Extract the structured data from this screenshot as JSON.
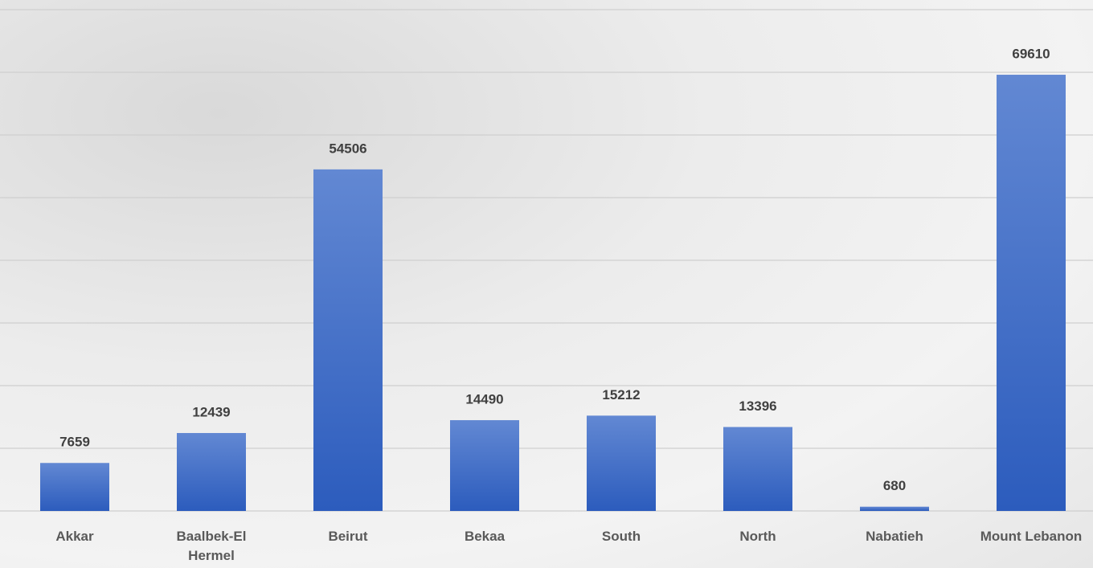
{
  "chart_data": {
    "type": "bar",
    "categories": [
      "Akkar",
      "Baalbek-El Hermel",
      "Beirut",
      "Bekaa",
      "South",
      "North",
      "Nabatieh",
      "Mount Lebanon"
    ],
    "values": [
      7659,
      12439,
      54506,
      14490,
      15212,
      13396,
      680,
      69610
    ],
    "color": "#3d6bc9",
    "ylim": [
      0,
      80000
    ],
    "yticks": [
      0,
      10000,
      20000,
      30000,
      40000,
      50000,
      60000,
      70000,
      80000
    ],
    "grid": true
  }
}
